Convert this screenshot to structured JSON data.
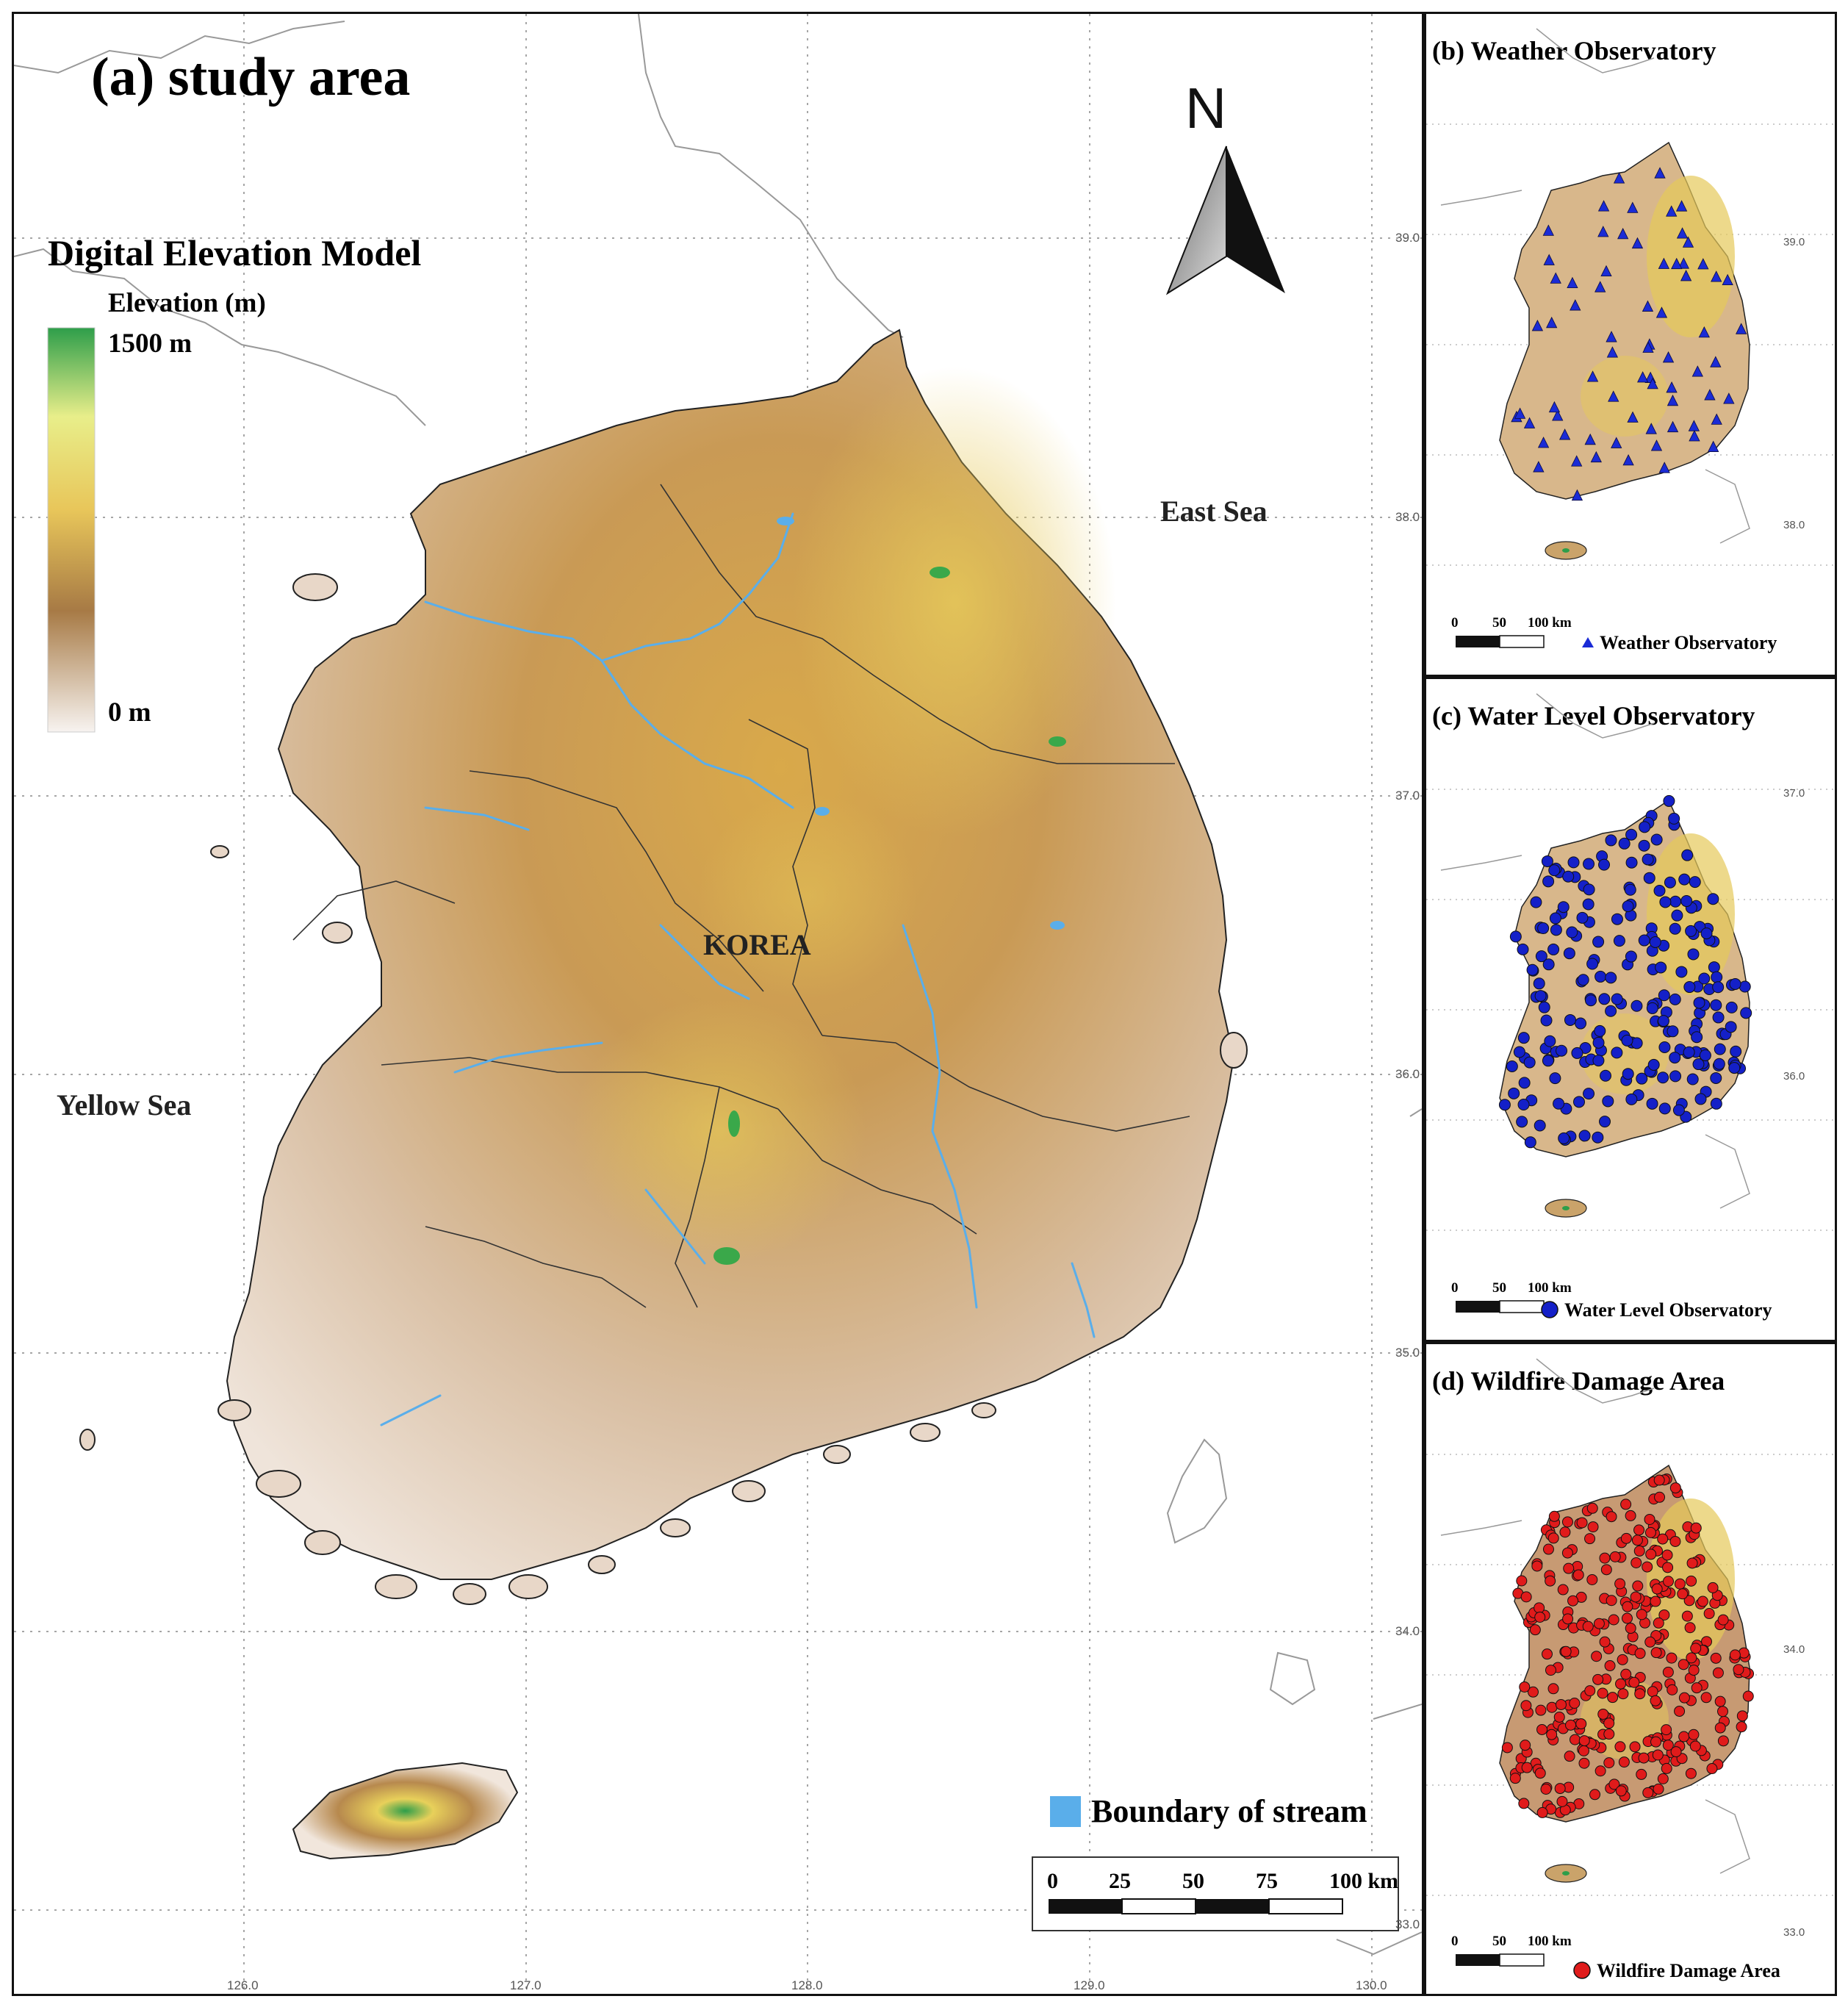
{
  "main_map": {
    "title": "(a) study area",
    "legend_title": "Digital Elevation Model",
    "legend_subtitle": "Elevation (m)",
    "legend_max": "1500 m",
    "legend_min": "0 m",
    "north_label": "N",
    "labels": {
      "east_sea": "East Sea",
      "yellow_sea": "Yellow Sea",
      "korea": "KOREA"
    },
    "stream_legend": "Boundary of stream",
    "scalebar": [
      "0",
      "25",
      "50",
      "75",
      "100 km"
    ],
    "lat_ticks": [
      "39.0",
      "38.0",
      "37.0",
      "36.0",
      "35.0",
      "34.0",
      "33.0"
    ],
    "lon_ticks": [
      "126.0",
      "127.0",
      "128.0",
      "129.0",
      "130.0"
    ]
  },
  "insets": [
    {
      "title": "(b) Weather Observatory",
      "legend": "Weather Observatory",
      "marker": "triangle",
      "color": "#1a2bd6",
      "scalebar": [
        "0",
        "50",
        "100 km"
      ],
      "lat_ticks": [
        "39.0",
        "38.0"
      ]
    },
    {
      "title": "(c) Water Level Observatory",
      "legend": "Water Level Observatory",
      "marker": "circle",
      "color": "#1420c8",
      "scalebar": [
        "0",
        "50",
        "100 km"
      ],
      "lat_ticks": [
        "37.0",
        "36.0"
      ]
    },
    {
      "title": "(d) Wildfire Damage Area",
      "legend": "Wildfire Damage Area",
      "marker": "circle",
      "color": "#e01b1b",
      "scalebar": [
        "0",
        "50",
        "100 km"
      ],
      "lat_ticks": [
        "34.0",
        "33.0"
      ]
    }
  ],
  "colors": {
    "high": "#2e9e4a",
    "mid": "#e8c65a",
    "low_mid": "#a77a45",
    "low": "#f7f3f0",
    "stream": "#5aaeea"
  }
}
